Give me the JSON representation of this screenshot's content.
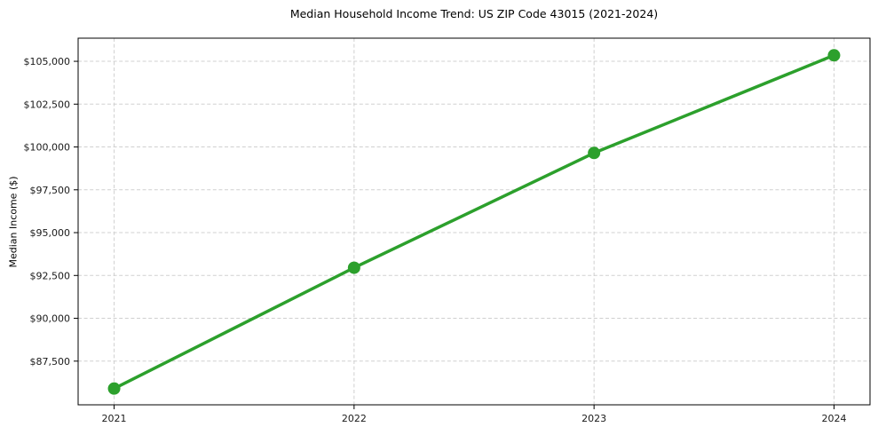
{
  "chart_data": {
    "type": "line",
    "title": "Median Household Income Trend: US ZIP Code 43015 (2021-2024)",
    "xlabel": "",
    "ylabel": "Median Income ($)",
    "x": [
      2021,
      2022,
      2023,
      2024
    ],
    "series": [
      {
        "name": "Median Household Income",
        "values": [
          85900,
          92950,
          99650,
          105350
        ]
      }
    ],
    "xticks": {
      "values": [
        2021,
        2022,
        2023,
        2024
      ],
      "labels": [
        "2021",
        "2022",
        "2023",
        "2024"
      ]
    },
    "yticks": {
      "values": [
        87500,
        90000,
        92500,
        95000,
        97500,
        100000,
        102500,
        105000
      ],
      "labels": [
        "$87,500",
        "$90,000",
        "$92,500",
        "$95,000",
        "$97,500",
        "$100,000",
        "$102,500",
        "$105,000"
      ]
    },
    "xlim": [
      2020.85,
      2024.15
    ],
    "ylim": [
      84950,
      106350
    ],
    "grid": true,
    "grid_style": "dashed",
    "legend": "none",
    "marker": "circle",
    "colors": {
      "line": "#2ca02c",
      "marker": "#2ca02c",
      "grid": "#d0d0d0",
      "spine": "#000000",
      "text": "#1a1a1a",
      "background": "#ffffff"
    }
  }
}
